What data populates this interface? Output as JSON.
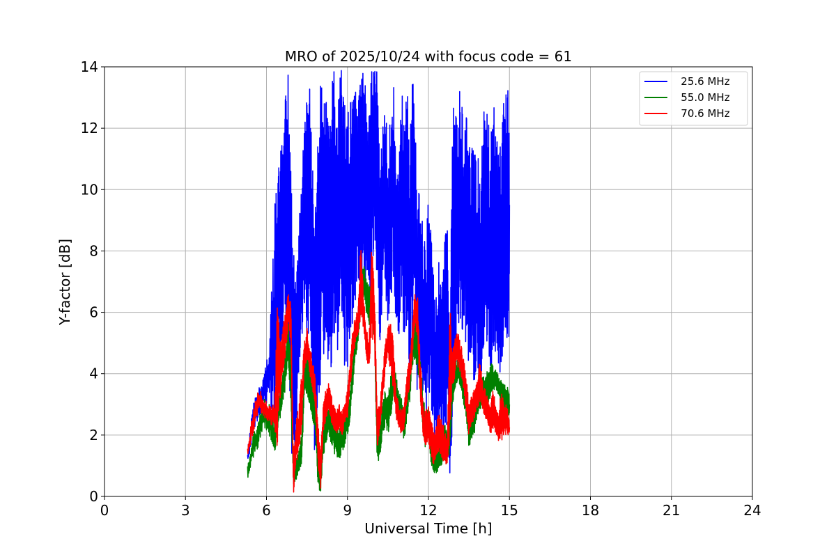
{
  "chart_data": {
    "type": "line",
    "title": "MRO of 2025/10/24 with focus code = 61",
    "xlabel": "Universal Time [h]",
    "ylabel": "Y-factor [dB]",
    "xlim": [
      0,
      24
    ],
    "ylim": [
      0,
      14
    ],
    "xticks": [
      0,
      3,
      6,
      9,
      12,
      15,
      18,
      21,
      24
    ],
    "yticks": [
      0,
      2,
      4,
      6,
      8,
      10,
      12,
      14
    ],
    "grid": true,
    "legend_position": "top-right",
    "series": [
      {
        "name": "   25.6 MHz",
        "color": "#0000ff",
        "x": [
          5.3,
          5.5,
          5.7,
          5.9,
          6.1,
          6.3,
          6.4,
          6.5,
          6.6,
          6.7,
          6.8,
          6.9,
          7.0,
          7.1,
          7.2,
          7.3,
          7.4,
          7.5,
          7.6,
          7.7,
          7.8,
          7.9,
          8.0,
          8.1,
          8.2,
          8.3,
          8.4,
          8.5,
          8.6,
          8.7,
          8.8,
          8.9,
          9.0,
          9.1,
          9.2,
          9.3,
          9.4,
          9.5,
          9.6,
          9.7,
          9.8,
          9.9,
          10.0,
          10.1,
          10.2,
          10.3,
          10.4,
          10.5,
          10.6,
          10.7,
          10.8,
          10.9,
          11.0,
          11.1,
          11.2,
          11.3,
          11.4,
          11.5,
          11.6,
          11.7,
          11.8,
          11.9,
          12.0,
          12.1,
          12.2,
          12.3,
          12.4,
          12.5,
          12.6,
          12.7,
          12.8,
          12.9,
          13.0,
          13.1,
          13.2,
          13.3,
          13.4,
          13.5,
          13.6,
          13.7,
          13.8,
          13.9,
          14.0,
          14.1,
          14.2,
          14.3,
          14.4,
          14.5,
          14.6,
          14.7,
          14.8,
          14.9,
          15.0
        ],
        "y_low": [
          1.0,
          2.0,
          2.5,
          3.0,
          3.0,
          1.5,
          3.5,
          4.0,
          5.0,
          5.5,
          3.0,
          1.5,
          1.0,
          1.5,
          4.0,
          5.0,
          6.0,
          4.5,
          5.5,
          3.0,
          1.0,
          3.0,
          3.5,
          4.5,
          5.0,
          4.0,
          3.5,
          5.5,
          4.5,
          5.0,
          6.0,
          4.0,
          4.0,
          4.5,
          5.5,
          6.0,
          7.0,
          6.5,
          7.0,
          6.0,
          5.5,
          7.5,
          8.0,
          7.0,
          5.0,
          6.0,
          6.5,
          5.5,
          6.0,
          7.0,
          5.0,
          5.0,
          6.5,
          4.5,
          5.5,
          3.5,
          4.5,
          5.0,
          3.0,
          4.0,
          2.5,
          2.0,
          3.5,
          3.0,
          2.0,
          1.5,
          2.5,
          1.5,
          2.0,
          2.5,
          0.0,
          3.0,
          4.0,
          5.0,
          5.5,
          4.5,
          5.0,
          4.0,
          4.5,
          3.5,
          4.0,
          3.5,
          4.0,
          4.5,
          4.0,
          3.5,
          4.5,
          4.5,
          3.5,
          4.0,
          5.0,
          4.5,
          5.0
        ],
        "y_high": [
          1.5,
          3.0,
          3.5,
          4.0,
          5.0,
          9.5,
          10.5,
          11.0,
          12.0,
          13.0,
          14.0,
          12.5,
          8.0,
          7.0,
          9.0,
          10.0,
          12.5,
          13.0,
          13.5,
          11.0,
          9.0,
          12.0,
          13.5,
          14.0,
          13.0,
          12.0,
          13.5,
          14.0,
          13.0,
          14.0,
          14.0,
          13.0,
          12.5,
          13.0,
          13.5,
          14.0,
          14.0,
          13.5,
          14.0,
          13.0,
          12.5,
          14.0,
          14.0,
          14.0,
          11.0,
          12.0,
          13.0,
          11.5,
          12.5,
          14.0,
          10.5,
          11.0,
          13.5,
          12.0,
          14.0,
          11.0,
          14.0,
          13.0,
          9.5,
          10.5,
          9.0,
          8.0,
          10.0,
          8.5,
          7.5,
          6.5,
          8.0,
          7.0,
          8.5,
          9.0,
          6.0,
          12.5,
          14.0,
          13.0,
          13.5,
          12.0,
          12.5,
          11.5,
          12.0,
          11.0,
          11.5,
          10.5,
          12.0,
          13.0,
          12.5,
          11.5,
          13.0,
          12.5,
          11.0,
          12.0,
          14.0,
          13.0,
          14.0
        ]
      },
      {
        "name": "   55.0 MHz",
        "color": "#008000",
        "x": [
          5.3,
          5.5,
          5.7,
          5.9,
          6.1,
          6.3,
          6.4,
          6.5,
          6.6,
          6.7,
          6.8,
          6.9,
          7.0,
          7.1,
          7.2,
          7.3,
          7.4,
          7.5,
          7.6,
          7.7,
          7.8,
          7.9,
          8.0,
          8.1,
          8.2,
          8.3,
          8.4,
          8.5,
          8.6,
          8.7,
          8.8,
          8.9,
          9.0,
          9.1,
          9.2,
          9.3,
          9.4,
          9.5,
          9.6,
          9.7,
          9.8,
          9.9,
          10.0,
          10.1,
          10.2,
          10.3,
          10.4,
          10.5,
          10.6,
          10.7,
          10.8,
          10.9,
          11.0,
          11.1,
          11.2,
          11.3,
          11.4,
          11.5,
          11.6,
          11.7,
          11.8,
          11.9,
          12.0,
          12.1,
          12.2,
          12.3,
          12.4,
          12.5,
          12.6,
          12.7,
          12.8,
          12.9,
          13.0,
          13.1,
          13.2,
          13.3,
          13.4,
          13.5,
          13.6,
          13.7,
          13.8,
          13.9,
          14.0,
          14.1,
          14.2,
          14.3,
          14.4,
          14.5,
          14.6,
          14.7,
          14.8,
          14.9,
          15.0
        ],
        "y_low": [
          0.5,
          1.2,
          1.6,
          2.2,
          2.0,
          1.4,
          2.0,
          2.5,
          3.0,
          3.5,
          4.5,
          3.0,
          0.3,
          0.5,
          0.8,
          1.0,
          3.0,
          3.3,
          3.0,
          2.5,
          2.2,
          0.5,
          0.0,
          1.3,
          1.6,
          2.0,
          1.7,
          1.4,
          1.3,
          1.2,
          1.4,
          1.6,
          2.0,
          2.5,
          3.5,
          4.5,
          5.0,
          6.0,
          6.5,
          6.0,
          5.5,
          6.0,
          5.0,
          1.0,
          1.2,
          2.0,
          2.3,
          2.0,
          2.5,
          3.2,
          3.0,
          2.5,
          2.2,
          1.8,
          2.4,
          3.0,
          4.0,
          4.5,
          4.0,
          3.5,
          2.0,
          1.5,
          2.0,
          1.0,
          0.8,
          0.7,
          0.9,
          1.0,
          1.2,
          1.0,
          1.5,
          3.0,
          3.5,
          3.8,
          3.5,
          3.0,
          2.5,
          1.5,
          1.8,
          2.0,
          2.5,
          2.8,
          3.0,
          2.8,
          3.0,
          3.2,
          3.4,
          3.5,
          3.3,
          3.0,
          2.8,
          2.6,
          2.5
        ],
        "y_high": [
          1.0,
          2.0,
          2.5,
          3.2,
          3.0,
          2.4,
          3.0,
          3.5,
          4.0,
          4.8,
          5.8,
          4.5,
          1.0,
          1.2,
          1.5,
          2.0,
          4.5,
          5.0,
          4.5,
          3.8,
          3.5,
          1.5,
          1.0,
          2.5,
          2.8,
          3.0,
          2.8,
          2.5,
          2.3,
          2.2,
          2.5,
          2.8,
          3.0,
          3.5,
          4.5,
          5.5,
          6.0,
          7.0,
          7.6,
          7.2,
          6.8,
          7.0,
          6.0,
          2.5,
          2.5,
          3.0,
          3.5,
          3.2,
          4.0,
          4.5,
          4.0,
          3.5,
          3.2,
          2.8,
          3.5,
          4.5,
          5.5,
          6.0,
          5.5,
          4.5,
          3.5,
          2.5,
          3.0,
          2.0,
          1.8,
          1.5,
          1.8,
          2.0,
          2.5,
          2.2,
          2.5,
          4.0,
          4.5,
          4.5,
          4.2,
          4.0,
          3.5,
          2.5,
          2.8,
          3.0,
          3.5,
          3.8,
          4.0,
          3.8,
          4.2,
          4.4,
          4.3,
          4.2,
          4.0,
          3.8,
          3.7,
          3.6,
          3.5
        ]
      },
      {
        "name": "   70.6 MHz",
        "color": "#ff0000",
        "x": [
          5.3,
          5.5,
          5.7,
          5.9,
          6.1,
          6.3,
          6.4,
          6.5,
          6.6,
          6.7,
          6.8,
          6.9,
          7.0,
          7.1,
          7.2,
          7.3,
          7.4,
          7.5,
          7.6,
          7.7,
          7.8,
          7.9,
          8.0,
          8.1,
          8.2,
          8.3,
          8.4,
          8.5,
          8.6,
          8.7,
          8.8,
          8.9,
          9.0,
          9.1,
          9.2,
          9.3,
          9.4,
          9.5,
          9.6,
          9.7,
          9.8,
          9.9,
          10.0,
          10.1,
          10.2,
          10.3,
          10.4,
          10.5,
          10.6,
          10.7,
          10.8,
          10.9,
          11.0,
          11.1,
          11.2,
          11.3,
          11.4,
          11.5,
          11.6,
          11.7,
          11.8,
          11.9,
          12.0,
          12.1,
          12.2,
          12.3,
          12.4,
          12.5,
          12.6,
          12.7,
          12.8,
          12.9,
          13.0,
          13.1,
          13.2,
          13.3,
          13.4,
          13.5,
          13.6,
          13.7,
          13.8,
          13.9,
          14.0,
          14.1,
          14.2,
          14.3,
          14.4,
          14.5,
          14.6,
          14.7,
          14.8,
          14.9,
          15.0
        ],
        "y_low": [
          1.2,
          2.0,
          2.8,
          2.6,
          2.4,
          2.2,
          1.5,
          3.0,
          4.0,
          4.5,
          5.5,
          5.0,
          0.0,
          1.0,
          1.5,
          2.0,
          4.0,
          4.5,
          4.0,
          3.5,
          3.0,
          1.0,
          0.0,
          2.0,
          2.5,
          2.8,
          2.4,
          2.2,
          2.0,
          2.2,
          2.0,
          2.3,
          2.5,
          3.5,
          4.5,
          5.0,
          5.3,
          5.5,
          5.5,
          4.5,
          4.0,
          5.0,
          5.0,
          1.5,
          2.0,
          3.0,
          4.0,
          4.5,
          4.0,
          3.5,
          2.5,
          2.2,
          2.0,
          2.2,
          3.0,
          3.5,
          4.5,
          5.5,
          5.0,
          3.0,
          2.0,
          1.5,
          1.8,
          1.2,
          1.0,
          1.3,
          1.5,
          1.2,
          1.0,
          1.0,
          2.0,
          3.5,
          4.0,
          4.2,
          4.0,
          3.5,
          2.5,
          2.0,
          2.3,
          2.5,
          2.8,
          3.0,
          2.8,
          2.5,
          2.2,
          2.0,
          2.2,
          2.0,
          1.8,
          1.8,
          2.0,
          2.0,
          2.0
        ],
        "y_high": [
          1.6,
          2.8,
          3.6,
          3.2,
          3.0,
          3.0,
          6.2,
          5.5,
          5.5,
          6.0,
          6.8,
          6.5,
          1.5,
          2.5,
          3.0,
          4.0,
          5.0,
          5.5,
          5.0,
          4.5,
          4.0,
          2.5,
          1.5,
          3.0,
          3.5,
          3.7,
          3.3,
          3.0,
          2.8,
          3.0,
          2.8,
          3.0,
          3.5,
          4.5,
          5.5,
          6.0,
          6.3,
          8.5,
          6.5,
          5.5,
          5.0,
          8.6,
          6.8,
          3.0,
          3.0,
          4.0,
          5.0,
          5.5,
          6.0,
          5.0,
          3.5,
          3.0,
          2.8,
          3.0,
          4.0,
          4.5,
          5.5,
          6.8,
          6.5,
          4.5,
          3.0,
          2.8,
          3.0,
          2.5,
          2.2,
          2.5,
          2.8,
          2.5,
          2.2,
          2.0,
          6.2,
          5.0,
          5.2,
          5.5,
          5.0,
          4.5,
          4.0,
          3.0,
          3.3,
          3.5,
          3.8,
          4.5,
          3.8,
          3.5,
          3.2,
          3.0,
          3.5,
          3.0,
          2.8,
          3.5,
          3.0,
          3.0,
          2.5
        ]
      }
    ]
  }
}
